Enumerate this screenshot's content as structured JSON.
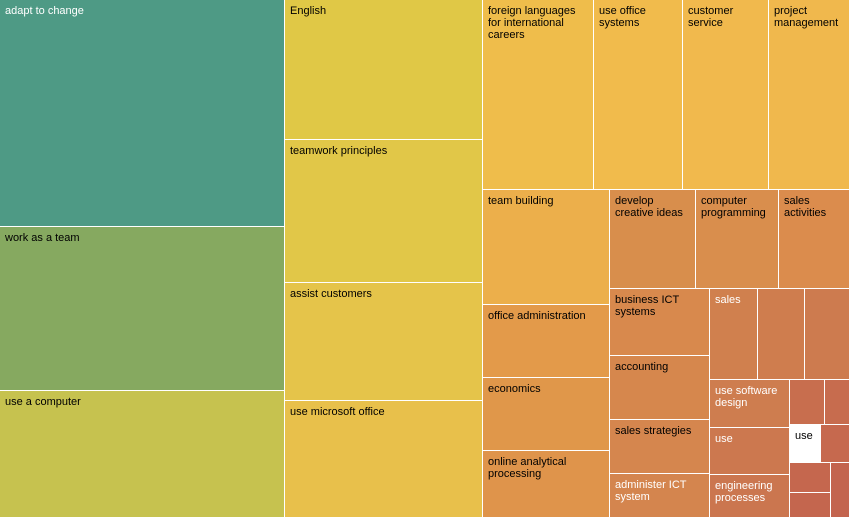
{
  "chart_data": {
    "type": "treemap",
    "value_basis": "approximate relative area estimated from tile size",
    "tiles": [
      {
        "label": "adapt to change",
        "value": 64740,
        "color": "#4e9a85",
        "text_color": "#ffffff"
      },
      {
        "label": "work as a team",
        "value": 46740,
        "color": "#86a960",
        "text_color": "#000000"
      },
      {
        "label": "use a computer",
        "value": 36480,
        "color": "#c6c24f",
        "text_color": "#000000"
      },
      {
        "label": "English",
        "value": 27720,
        "color": "#e0c846",
        "text_color": "#000000"
      },
      {
        "label": "teamwork principles",
        "value": 28600,
        "color": "#e1c748",
        "text_color": "#000000"
      },
      {
        "label": "assist customers",
        "value": 23500,
        "color": "#e5c44a",
        "text_color": "#000000"
      },
      {
        "label": "use microsoft office",
        "value": 23300,
        "color": "#e8c04b",
        "text_color": "#000000"
      },
      {
        "label": "foreign languages for international careers",
        "value": 21360,
        "color": "#efbd4b",
        "text_color": "#000000"
      },
      {
        "label": "use office systems",
        "value": 16340,
        "color": "#f1bb4c",
        "text_color": "#000000"
      },
      {
        "label": "customer service",
        "value": 16340,
        "color": "#f1b94d",
        "text_color": "#000000"
      },
      {
        "label": "project management",
        "value": 15580,
        "color": "#f0b84d",
        "text_color": "#000000"
      },
      {
        "label": "team building",
        "value": 14490,
        "color": "#ecaf4b",
        "text_color": "#000000"
      },
      {
        "label": "develop creative ideas",
        "value": 8280,
        "color": "#d88e4c",
        "text_color": "#000000"
      },
      {
        "label": "computer programming",
        "value": 8190,
        "color": "#d98e4d",
        "text_color": "#000000"
      },
      {
        "label": "sales activities",
        "value": 6900,
        "color": "#db8c4d",
        "text_color": "#000000"
      },
      {
        "label": "office administration",
        "value": 9030,
        "color": "#e39a4a",
        "text_color": "#000000"
      },
      {
        "label": "economics",
        "value": 9030,
        "color": "#e0974a",
        "text_color": "#000000"
      },
      {
        "label": "online analytical processing",
        "value": 8440,
        "color": "#df944b",
        "text_color": "#000000"
      },
      {
        "label": "business ICT systems",
        "value": 6470,
        "color": "#d8894d",
        "text_color": "#000000"
      },
      {
        "label": "accounting",
        "value": 6270,
        "color": "#d6874d",
        "text_color": "#000000"
      },
      {
        "label": "sales strategies",
        "value": 5150,
        "color": "#d5864e",
        "text_color": "#000000"
      },
      {
        "label": "administer ICT system",
        "value": 4610,
        "color": "#d4854e",
        "text_color": "#ffffff"
      },
      {
        "label": "sales",
        "value": 4370,
        "color": "#d0804e",
        "text_color": "#ffffff"
      },
      {
        "label": "",
        "value": 4370,
        "color": "#cf7d4e",
        "text_color": "#ffffff"
      },
      {
        "label": "",
        "value": 4180,
        "color": "#cd7b4f",
        "text_color": "#ffffff"
      },
      {
        "label": "use software design",
        "value": 3720,
        "color": "#ce7d4f",
        "text_color": "#ffffff"
      },
      {
        "label": "",
        "value": 1450,
        "color": "#c86e4e",
        "text_color": "#ffffff"
      },
      {
        "label": "",
        "value": 1220,
        "color": "#c76c4e",
        "text_color": "#ffffff"
      },
      {
        "label": "use",
        "value": 3710,
        "color": "#cc784f",
        "text_color": "#ffffff"
      },
      {
        "label": "use",
        "value": 1180,
        "color": "#ffffff",
        "text_color": "#000000"
      },
      {
        "label": "",
        "value": 1020,
        "color": "#c6694e",
        "text_color": "#ffffff"
      },
      {
        "label": "engineering processes",
        "value": 3810,
        "color": "#cb764f",
        "text_color": "#ffffff"
      },
      {
        "label": "",
        "value": 1010,
        "color": "#c5674e",
        "text_color": "#ffffff"
      },
      {
        "label": "",
        "value": 990,
        "color": "#c4664e",
        "text_color": "#ffffff"
      },
      {
        "label": "",
        "value": 950,
        "color": "#c3644e",
        "text_color": "#ffffff"
      }
    ]
  }
}
